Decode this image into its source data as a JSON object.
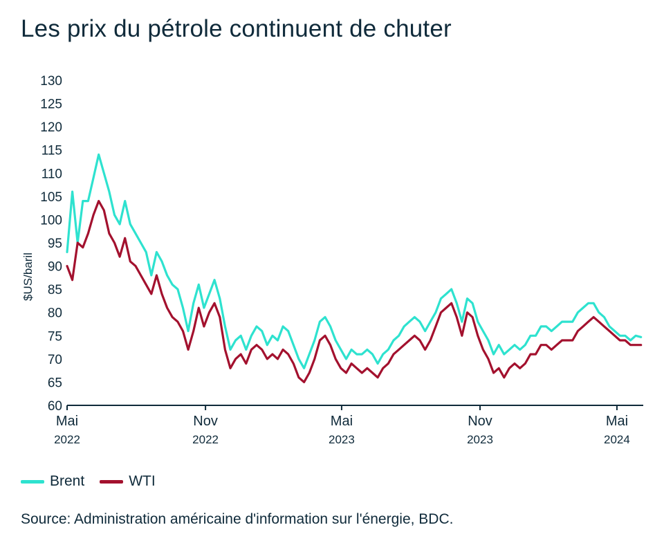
{
  "title": "Les prix du pétrole continuent de chuter",
  "source": "Source: Administration américaine d'information sur l'énergie, BDC.",
  "colors": {
    "brent": "#2ee2cf",
    "wti": "#a3112e",
    "text": "#0f2a3a"
  },
  "chart_data": {
    "type": "line",
    "title": "Les prix du pétrole continuent de chuter",
    "ylabel": "$US/baril",
    "ylim": [
      60,
      130
    ],
    "yticks": [
      60,
      65,
      70,
      75,
      80,
      85,
      90,
      95,
      100,
      105,
      110,
      115,
      120,
      125,
      130
    ],
    "xlim": [
      "2022-05-01",
      "2024-06-05"
    ],
    "xticks": [
      {
        "date": "2022-05-01",
        "month": "Mai",
        "year": "2022"
      },
      {
        "date": "2022-11-01",
        "month": "Nov",
        "year": "2022"
      },
      {
        "date": "2023-05-01",
        "month": "Mai",
        "year": "2023"
      },
      {
        "date": "2023-11-01",
        "month": "Nov",
        "year": "2023"
      },
      {
        "date": "2024-05-01",
        "month": "Mai",
        "year": "2024"
      }
    ],
    "legend_position": "bottom-left",
    "grid": false,
    "series": [
      {
        "name": "Brent",
        "color": "#2ee2cf",
        "points": [
          [
            "2022-05-01",
            93
          ],
          [
            "2022-05-08",
            106
          ],
          [
            "2022-05-15",
            95
          ],
          [
            "2022-05-22",
            104
          ],
          [
            "2022-05-29",
            104
          ],
          [
            "2022-06-05",
            109
          ],
          [
            "2022-06-12",
            114
          ],
          [
            "2022-06-19",
            110
          ],
          [
            "2022-06-26",
            106
          ],
          [
            "2022-07-03",
            101
          ],
          [
            "2022-07-10",
            99
          ],
          [
            "2022-07-17",
            104
          ],
          [
            "2022-07-24",
            99
          ],
          [
            "2022-07-31",
            97
          ],
          [
            "2022-08-07",
            95
          ],
          [
            "2022-08-14",
            93
          ],
          [
            "2022-08-21",
            88
          ],
          [
            "2022-08-28",
            93
          ],
          [
            "2022-09-04",
            91
          ],
          [
            "2022-09-11",
            88
          ],
          [
            "2022-09-18",
            86
          ],
          [
            "2022-09-25",
            85
          ],
          [
            "2022-10-02",
            81
          ],
          [
            "2022-10-09",
            76
          ],
          [
            "2022-10-16",
            82
          ],
          [
            "2022-10-23",
            86
          ],
          [
            "2022-10-30",
            81
          ],
          [
            "2022-11-06",
            84
          ],
          [
            "2022-11-13",
            87
          ],
          [
            "2022-11-20",
            83
          ],
          [
            "2022-11-27",
            77
          ],
          [
            "2022-12-04",
            72
          ],
          [
            "2022-12-11",
            74
          ],
          [
            "2022-12-18",
            75
          ],
          [
            "2022-12-25",
            72
          ],
          [
            "2023-01-01",
            75
          ],
          [
            "2023-01-08",
            77
          ],
          [
            "2023-01-15",
            76
          ],
          [
            "2023-01-22",
            73
          ],
          [
            "2023-01-29",
            75
          ],
          [
            "2023-02-05",
            74
          ],
          [
            "2023-02-12",
            77
          ],
          [
            "2023-02-19",
            76
          ],
          [
            "2023-02-26",
            73
          ],
          [
            "2023-03-05",
            70
          ],
          [
            "2023-03-12",
            68
          ],
          [
            "2023-03-19",
            71
          ],
          [
            "2023-03-26",
            74
          ],
          [
            "2023-04-02",
            78
          ],
          [
            "2023-04-09",
            79
          ],
          [
            "2023-04-16",
            77
          ],
          [
            "2023-04-23",
            74
          ],
          [
            "2023-04-30",
            72
          ],
          [
            "2023-05-07",
            70
          ],
          [
            "2023-05-14",
            72
          ],
          [
            "2023-05-21",
            71
          ],
          [
            "2023-05-28",
            71
          ],
          [
            "2023-06-04",
            72
          ],
          [
            "2023-06-11",
            71
          ],
          [
            "2023-06-18",
            69
          ],
          [
            "2023-06-25",
            71
          ],
          [
            "2023-07-02",
            72
          ],
          [
            "2023-07-09",
            74
          ],
          [
            "2023-07-16",
            75
          ],
          [
            "2023-07-23",
            77
          ],
          [
            "2023-07-30",
            78
          ],
          [
            "2023-08-06",
            79
          ],
          [
            "2023-08-13",
            78
          ],
          [
            "2023-08-20",
            76
          ],
          [
            "2023-08-27",
            78
          ],
          [
            "2023-09-03",
            80
          ],
          [
            "2023-09-10",
            83
          ],
          [
            "2023-09-17",
            84
          ],
          [
            "2023-09-24",
            85
          ],
          [
            "2023-10-01",
            82
          ],
          [
            "2023-10-08",
            78
          ],
          [
            "2023-10-15",
            83
          ],
          [
            "2023-10-22",
            82
          ],
          [
            "2023-10-29",
            78
          ],
          [
            "2023-11-05",
            76
          ],
          [
            "2023-11-12",
            74
          ],
          [
            "2023-11-19",
            71
          ],
          [
            "2023-11-26",
            73
          ],
          [
            "2023-12-03",
            71
          ],
          [
            "2023-12-10",
            72
          ],
          [
            "2023-12-17",
            73
          ],
          [
            "2023-12-24",
            72
          ],
          [
            "2023-12-31",
            73
          ],
          [
            "2024-01-07",
            75
          ],
          [
            "2024-01-14",
            75
          ],
          [
            "2024-01-21",
            77
          ],
          [
            "2024-01-28",
            77
          ],
          [
            "2024-02-04",
            76
          ],
          [
            "2024-02-11",
            77
          ],
          [
            "2024-02-18",
            78
          ],
          [
            "2024-02-25",
            78
          ],
          [
            "2024-03-03",
            78
          ],
          [
            "2024-03-10",
            80
          ],
          [
            "2024-03-17",
            81
          ],
          [
            "2024-03-24",
            82
          ],
          [
            "2024-03-31",
            82
          ],
          [
            "2024-04-07",
            80
          ],
          [
            "2024-04-14",
            79
          ],
          [
            "2024-04-21",
            77
          ],
          [
            "2024-04-28",
            76
          ],
          [
            "2024-05-05",
            75
          ],
          [
            "2024-05-12",
            75
          ],
          [
            "2024-05-19",
            74
          ],
          [
            "2024-05-26",
            75
          ],
          [
            "2024-06-02",
            74.7
          ]
        ]
      },
      {
        "name": "WTI",
        "color": "#a3112e",
        "points": [
          [
            "2022-05-01",
            90
          ],
          [
            "2022-05-08",
            87
          ],
          [
            "2022-05-15",
            95
          ],
          [
            "2022-05-22",
            94
          ],
          [
            "2022-05-29",
            97
          ],
          [
            "2022-06-05",
            101
          ],
          [
            "2022-06-12",
            104
          ],
          [
            "2022-06-19",
            102
          ],
          [
            "2022-06-26",
            97
          ],
          [
            "2022-07-03",
            95
          ],
          [
            "2022-07-10",
            92
          ],
          [
            "2022-07-17",
            96
          ],
          [
            "2022-07-24",
            91
          ],
          [
            "2022-07-31",
            90
          ],
          [
            "2022-08-07",
            88
          ],
          [
            "2022-08-14",
            86
          ],
          [
            "2022-08-21",
            84
          ],
          [
            "2022-08-28",
            88
          ],
          [
            "2022-09-04",
            84
          ],
          [
            "2022-09-11",
            81
          ],
          [
            "2022-09-18",
            79
          ],
          [
            "2022-09-25",
            78
          ],
          [
            "2022-10-02",
            76
          ],
          [
            "2022-10-09",
            72
          ],
          [
            "2022-10-16",
            76
          ],
          [
            "2022-10-23",
            81
          ],
          [
            "2022-10-30",
            77
          ],
          [
            "2022-11-06",
            80
          ],
          [
            "2022-11-13",
            82
          ],
          [
            "2022-11-20",
            79
          ],
          [
            "2022-11-27",
            72
          ],
          [
            "2022-12-04",
            68
          ],
          [
            "2022-12-11",
            70
          ],
          [
            "2022-12-18",
            71
          ],
          [
            "2022-12-25",
            69
          ],
          [
            "2023-01-01",
            72
          ],
          [
            "2023-01-08",
            73
          ],
          [
            "2023-01-15",
            72
          ],
          [
            "2023-01-22",
            70
          ],
          [
            "2023-01-29",
            71
          ],
          [
            "2023-02-05",
            70
          ],
          [
            "2023-02-12",
            72
          ],
          [
            "2023-02-19",
            71
          ],
          [
            "2023-02-26",
            69
          ],
          [
            "2023-03-05",
            66
          ],
          [
            "2023-03-12",
            65
          ],
          [
            "2023-03-19",
            67
          ],
          [
            "2023-03-26",
            70
          ],
          [
            "2023-04-02",
            74
          ],
          [
            "2023-04-09",
            75
          ],
          [
            "2023-04-16",
            73
          ],
          [
            "2023-04-23",
            70
          ],
          [
            "2023-04-30",
            68
          ],
          [
            "2023-05-07",
            67
          ],
          [
            "2023-05-14",
            69
          ],
          [
            "2023-05-21",
            68
          ],
          [
            "2023-05-28",
            67
          ],
          [
            "2023-06-04",
            68
          ],
          [
            "2023-06-11",
            67
          ],
          [
            "2023-06-18",
            66
          ],
          [
            "2023-06-25",
            68
          ],
          [
            "2023-07-02",
            69
          ],
          [
            "2023-07-09",
            71
          ],
          [
            "2023-07-16",
            72
          ],
          [
            "2023-07-23",
            73
          ],
          [
            "2023-07-30",
            74
          ],
          [
            "2023-08-06",
            75
          ],
          [
            "2023-08-13",
            74
          ],
          [
            "2023-08-20",
            72
          ],
          [
            "2023-08-27",
            74
          ],
          [
            "2023-09-03",
            77
          ],
          [
            "2023-09-10",
            80
          ],
          [
            "2023-09-17",
            81
          ],
          [
            "2023-09-24",
            82
          ],
          [
            "2023-10-01",
            79
          ],
          [
            "2023-10-08",
            75
          ],
          [
            "2023-10-15",
            80
          ],
          [
            "2023-10-22",
            79
          ],
          [
            "2023-10-29",
            75
          ],
          [
            "2023-11-05",
            72
          ],
          [
            "2023-11-12",
            70
          ],
          [
            "2023-11-19",
            67
          ],
          [
            "2023-11-26",
            68
          ],
          [
            "2023-12-03",
            66
          ],
          [
            "2023-12-10",
            68
          ],
          [
            "2023-12-17",
            69
          ],
          [
            "2023-12-24",
            68
          ],
          [
            "2023-12-31",
            69
          ],
          [
            "2024-01-07",
            71
          ],
          [
            "2024-01-14",
            71
          ],
          [
            "2024-01-21",
            73
          ],
          [
            "2024-01-28",
            73
          ],
          [
            "2024-02-04",
            72
          ],
          [
            "2024-02-11",
            73
          ],
          [
            "2024-02-18",
            74
          ],
          [
            "2024-02-25",
            74
          ],
          [
            "2024-03-03",
            74
          ],
          [
            "2024-03-10",
            76
          ],
          [
            "2024-03-17",
            77
          ],
          [
            "2024-03-24",
            78
          ],
          [
            "2024-03-31",
            79
          ],
          [
            "2024-04-07",
            78
          ],
          [
            "2024-04-14",
            77
          ],
          [
            "2024-04-21",
            76
          ],
          [
            "2024-04-28",
            75
          ],
          [
            "2024-05-05",
            74
          ],
          [
            "2024-05-12",
            74
          ],
          [
            "2024-05-19",
            73
          ],
          [
            "2024-05-26",
            73
          ],
          [
            "2024-06-02",
            73
          ]
        ]
      }
    ]
  }
}
